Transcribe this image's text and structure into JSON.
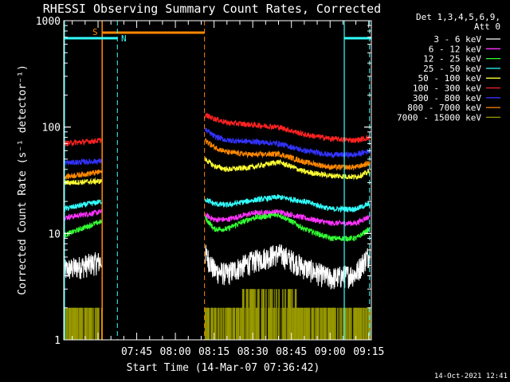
{
  "chart_data": {
    "type": "line",
    "title": "RHESSI Observing Summary Count Rates, Corrected",
    "xlabel": "Start Time (14-Mar-07 07:36:42)",
    "ylabel": "Corrected Count Rate (s⁻¹ detector⁻¹)",
    "y_scale": "log",
    "ylim": [
      1,
      1000
    ],
    "xlim_minutes": [
      436.7,
      556.0
    ],
    "x_ticks": [
      {
        "minute": 465,
        "label": "07:45"
      },
      {
        "minute": 480,
        "label": "08:00"
      },
      {
        "minute": 495,
        "label": "08:15"
      },
      {
        "minute": 510,
        "label": "08:30"
      },
      {
        "minute": 525,
        "label": "08:45"
      },
      {
        "minute": 540,
        "label": "09:00"
      },
      {
        "minute": 555,
        "label": "09:15"
      }
    ],
    "y_ticks": [
      {
        "value": 1,
        "label": "1"
      },
      {
        "value": 10,
        "label": "10"
      },
      {
        "value": 100,
        "label": "100"
      },
      {
        "value": 1000,
        "label": "1000"
      }
    ],
    "legend_header": [
      "Det 1,3,4,5,6,9,",
      "Att 0"
    ],
    "legend_placement": "right",
    "data_gap_minutes": [
      451.5,
      491.5
    ],
    "series": [
      {
        "name": "3 - 6 keV",
        "color": "#ffffff",
        "x": [
          436.7,
          451.5,
          491.5,
          495,
          500,
          510,
          520,
          530,
          540,
          550,
          555.5
        ],
        "y": [
          4.5,
          5.5,
          6.5,
          4.5,
          4.2,
          5.5,
          6.5,
          4.8,
          3.8,
          4.2,
          6.5
        ]
      },
      {
        "name": "6 - 12 keV",
        "color": "#ff33ff",
        "x": [
          436.7,
          451.5,
          491.5,
          495,
          500,
          510,
          520,
          530,
          540,
          550,
          555.5
        ],
        "y": [
          14,
          16,
          15,
          13.5,
          13.5,
          15.5,
          16,
          14,
          12.5,
          12.5,
          14.5
        ]
      },
      {
        "name": "12 - 25 keV",
        "color": "#33ff33",
        "x": [
          436.7,
          451.5,
          491.5,
          495,
          500,
          510,
          520,
          530,
          540,
          550,
          555.5
        ],
        "y": [
          9.5,
          13,
          14,
          11,
          11,
          14,
          15,
          11,
          9,
          9,
          11
        ]
      },
      {
        "name": "25 - 50 keV",
        "color": "#33ffff",
        "x": [
          436.7,
          451.5,
          491.5,
          495,
          500,
          510,
          520,
          530,
          540,
          550,
          555.5
        ],
        "y": [
          17,
          20,
          21,
          19,
          18.5,
          20.5,
          22,
          20,
          17,
          17,
          19
        ]
      },
      {
        "name": "50 - 100 keV",
        "color": "#ffff33",
        "x": [
          436.7,
          451.5,
          491.5,
          495,
          500,
          510,
          520,
          530,
          540,
          550,
          555.5
        ],
        "y": [
          30,
          31,
          50,
          43,
          40,
          42,
          47,
          38,
          35,
          34,
          38
        ]
      },
      {
        "name": "100 - 300 keV",
        "color": "#ff2222",
        "x": [
          436.7,
          451.5,
          491.5,
          495,
          500,
          510,
          520,
          530,
          540,
          550,
          555.5
        ],
        "y": [
          70,
          75,
          130,
          120,
          110,
          105,
          100,
          85,
          78,
          75,
          80
        ]
      },
      {
        "name": "300 - 800 keV",
        "color": "#3333ff",
        "x": [
          436.7,
          451.5,
          491.5,
          495,
          500,
          510,
          520,
          530,
          540,
          550,
          555.5
        ],
        "y": [
          46,
          48,
          95,
          82,
          75,
          73,
          70,
          60,
          55,
          55,
          60
        ]
      },
      {
        "name": "800 - 7000 keV",
        "color": "#ff8800",
        "x": [
          436.7,
          451.5,
          491.5,
          495,
          500,
          510,
          520,
          530,
          540,
          550,
          555.5
        ],
        "y": [
          34,
          38,
          75,
          65,
          58,
          55,
          56,
          47,
          42,
          42,
          46
        ]
      },
      {
        "name": "7000 - 15000 keV",
        "color": "#999900",
        "x": [
          436.7,
          451.5,
          491.5,
          495,
          500,
          510,
          520,
          530,
          540,
          550,
          555.5
        ],
        "y": [
          1.5,
          1.5,
          1.5,
          1.5,
          1.5,
          2.0,
          2.5,
          1.5,
          1.5,
          1.5,
          1.5
        ]
      }
    ],
    "annotations": [
      {
        "label": "S",
        "color": "#ff8800"
      },
      {
        "label": "N",
        "color": "#33ffff"
      }
    ],
    "timestamp": "14-Oct-2021 12:41"
  }
}
